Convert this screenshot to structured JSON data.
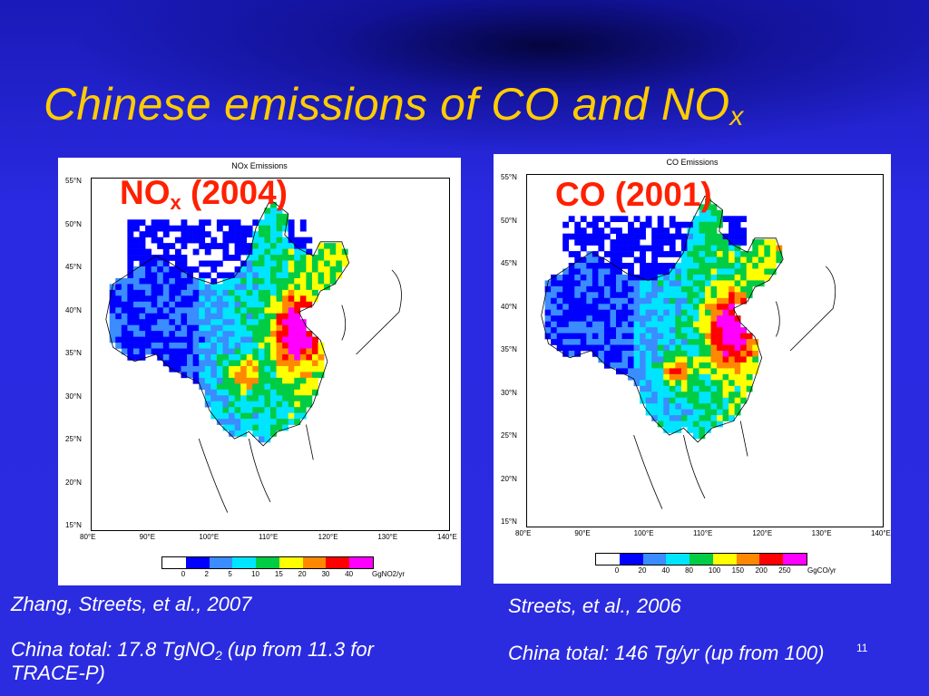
{
  "slide": {
    "title_main": "Chinese emissions of CO and NO",
    "title_sub": "x",
    "slide_number": "11"
  },
  "nox_panel": {
    "small_title": "NOx Emissions",
    "label_main": "NO",
    "label_sub": "x",
    "label_year": " (2004)",
    "lat_ticks": [
      "55°N",
      "50°N",
      "45°N",
      "40°N",
      "35°N",
      "30°N",
      "25°N",
      "20°N",
      "15°N"
    ],
    "lon_ticks": [
      "80°E",
      "90°E",
      "100°E",
      "110°E",
      "120°E",
      "130°E",
      "140°E"
    ],
    "colorbar_ticks": [
      "0",
      "2",
      "5",
      "10",
      "15",
      "20",
      "30",
      "40"
    ],
    "colorbar_unit": "GgNO2/yr"
  },
  "co_panel": {
    "small_title": "CO Emissions",
    "label": "CO (2001)",
    "lat_ticks": [
      "55°N",
      "50°N",
      "45°N",
      "40°N",
      "35°N",
      "30°N",
      "25°N",
      "20°N",
      "15°N"
    ],
    "lon_ticks": [
      "80°E",
      "90°E",
      "100°E",
      "110°E",
      "120°E",
      "130°E",
      "140°E"
    ],
    "colorbar_ticks": [
      "0",
      "20",
      "40",
      "80",
      "100",
      "150",
      "200",
      "250"
    ],
    "colorbar_unit": "GgCO/yr"
  },
  "colorbar_colors": [
    "#ffffff",
    "#0000ff",
    "#3a8cff",
    "#00e5ff",
    "#00cc44",
    "#ffff00",
    "#ff8800",
    "#ff0000",
    "#ff00ff"
  ],
  "captions": {
    "left_ref": "Zhang, Streets, et al., 2007",
    "left_total_a": "China total: 17.8 TgNO",
    "left_total_sub": "2",
    "left_total_b": " (up from 11.3 for",
    "left_total_c": "TRACE-P)",
    "right_ref": "Streets, et al., 2006",
    "right_total": "China total: 146 Tg/yr (up from 100)"
  }
}
